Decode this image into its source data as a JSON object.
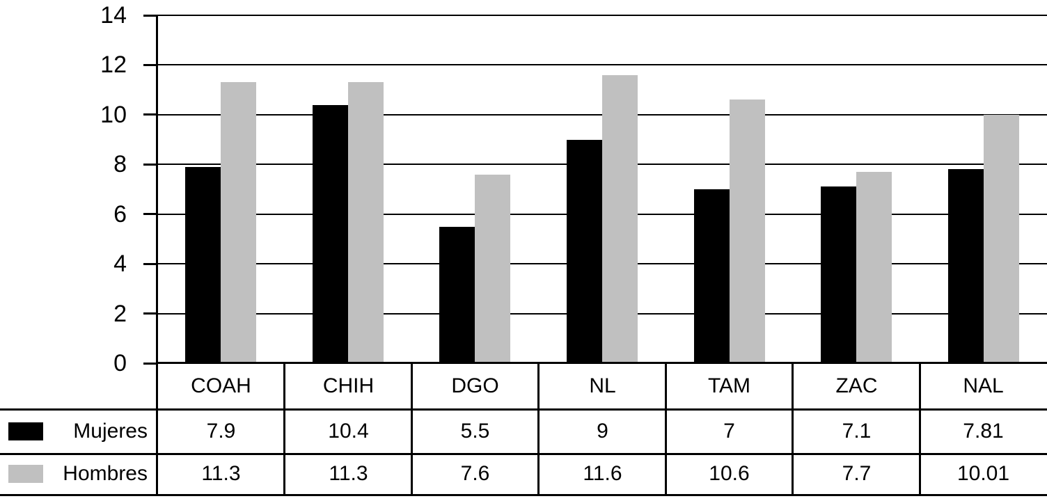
{
  "chart_data": {
    "type": "bar",
    "title": "",
    "xlabel": "",
    "ylabel": "",
    "categories": [
      "COAH",
      "CHIH",
      "DGO",
      "NL",
      "TAM",
      "ZAC",
      "NAL"
    ],
    "series": [
      {
        "name": "Mujeres",
        "color": "#000000",
        "values": [
          7.9,
          10.4,
          5.5,
          9,
          7,
          7.1,
          7.81
        ]
      },
      {
        "name": "Hombres",
        "color": "#c0c0c0",
        "values": [
          11.3,
          11.3,
          7.6,
          11.6,
          10.6,
          7.7,
          10.01
        ]
      }
    ],
    "ylim": [
      0,
      14
    ],
    "yticks": [
      0,
      2,
      4,
      6,
      8,
      10,
      12,
      14
    ],
    "grid": true,
    "legend_position": "data-table-left-column",
    "axis_color": "#000000",
    "gridline_color": "#000000",
    "background_color": "#ffffff"
  }
}
